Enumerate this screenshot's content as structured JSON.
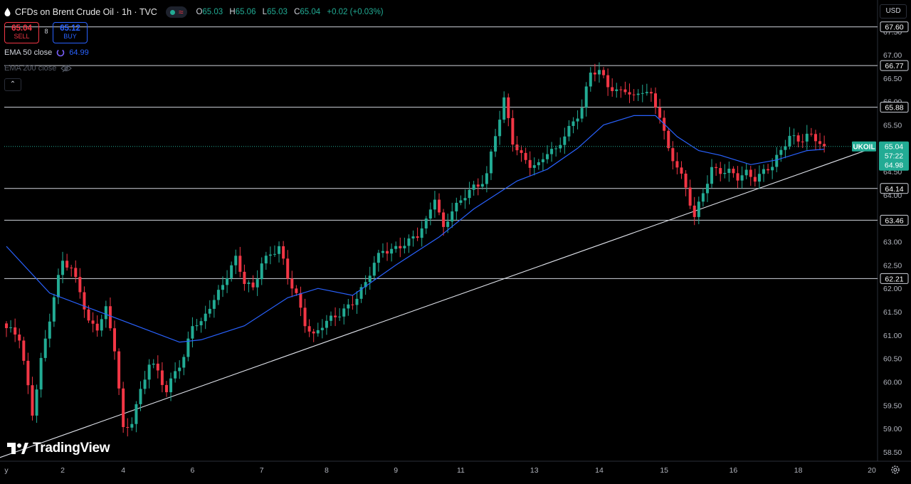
{
  "header": {
    "title": "CFDs on Brent Crude Oil · 1h · TVC",
    "ohlc": {
      "o": "65.03",
      "h": "65.06",
      "l": "65.03",
      "c": "65.04",
      "change": "+0.02 (+0.03%)"
    }
  },
  "trade": {
    "sell_price": "65.04",
    "sell_label": "SELL",
    "spread": "8",
    "buy_price": "65.12",
    "buy_label": "BUY"
  },
  "indicators": {
    "ema50_label": "EMA 50 close",
    "ema50_value": "64.99",
    "ema200_label": "EMA 200 close"
  },
  "currency": "USD",
  "logo": "TradingView",
  "collapse_glyph": "⌃",
  "colors": {
    "up": "#22ab94",
    "down": "#f23645",
    "ema": "#2962ff",
    "level_line": "#d1d4dc",
    "background": "#000000",
    "price_tag": "#22ab94"
  },
  "chart_data": {
    "type": "candlestick",
    "symbol": "UKOIL",
    "y_range": [
      58.3,
      67.9
    ],
    "y_ticks": [
      "58.50",
      "59.00",
      "59.50",
      "60.00",
      "60.50",
      "61.00",
      "61.50",
      "62.00",
      "62.50",
      "63.00",
      "63.50",
      "64.00",
      "64.50",
      "65.00",
      "65.50",
      "66.00",
      "66.50",
      "67.00",
      "67.50"
    ],
    "x_ticks": [
      {
        "i": 0,
        "label": "y"
      },
      {
        "i": 13,
        "label": "2"
      },
      {
        "i": 27,
        "label": "4"
      },
      {
        "i": 43,
        "label": "6"
      },
      {
        "i": 59,
        "label": "7"
      },
      {
        "i": 74,
        "label": "8"
      },
      {
        "i": 90,
        "label": "9"
      },
      {
        "i": 105,
        "label": "11"
      },
      {
        "i": 122,
        "label": "13"
      },
      {
        "i": 137,
        "label": "14"
      },
      {
        "i": 152,
        "label": "15"
      },
      {
        "i": 168,
        "label": "16"
      },
      {
        "i": 183,
        "label": "18"
      },
      {
        "i": 200,
        "label": "20"
      }
    ],
    "horizontal_levels": [
      "67.60",
      "66.77",
      "65.88",
      "64.14",
      "63.46",
      "62.21"
    ],
    "last_price": {
      "symbol": "UKOIL",
      "price": "65.04",
      "countdown": "57:22",
      "ema": "64.98"
    },
    "trendline": [
      {
        "i": -10,
        "price": 58.1
      },
      {
        "i": 200,
        "price": 65.0
      }
    ],
    "close_anchors": [
      [
        0,
        61.15
      ],
      [
        3,
        60.9
      ],
      [
        6,
        59.35
      ],
      [
        8,
        60.5
      ],
      [
        11,
        61.8
      ],
      [
        13,
        62.55
      ],
      [
        15,
        62.4
      ],
      [
        17,
        62.0
      ],
      [
        19,
        61.3
      ],
      [
        21,
        61.15
      ],
      [
        23,
        61.5
      ],
      [
        25,
        60.7
      ],
      [
        27,
        59.0
      ],
      [
        29,
        59.2
      ],
      [
        31,
        59.8
      ],
      [
        33,
        60.35
      ],
      [
        35,
        60.2
      ],
      [
        37,
        59.8
      ],
      [
        39,
        60.3
      ],
      [
        41,
        60.5
      ],
      [
        43,
        61.2
      ],
      [
        45,
        61.2
      ],
      [
        47,
        61.65
      ],
      [
        49,
        61.95
      ],
      [
        51,
        62.3
      ],
      [
        53,
        62.6
      ],
      [
        55,
        62.1
      ],
      [
        57,
        62.0
      ],
      [
        59,
        62.6
      ],
      [
        61,
        62.75
      ],
      [
        63,
        62.85
      ],
      [
        65,
        62.2
      ],
      [
        67,
        61.85
      ],
      [
        69,
        61.3
      ],
      [
        71,
        61.0
      ],
      [
        73,
        61.2
      ],
      [
        75,
        61.3
      ],
      [
        77,
        61.45
      ],
      [
        79,
        61.65
      ],
      [
        81,
        61.85
      ],
      [
        83,
        62.1
      ],
      [
        85,
        62.5
      ],
      [
        87,
        62.8
      ],
      [
        89,
        62.85
      ],
      [
        91,
        62.95
      ],
      [
        93,
        63.0
      ],
      [
        95,
        63.1
      ],
      [
        97,
        63.4
      ],
      [
        99,
        64.0
      ],
      [
        101,
        63.3
      ],
      [
        103,
        63.7
      ],
      [
        105,
        63.8
      ],
      [
        107,
        64.1
      ],
      [
        109,
        64.2
      ],
      [
        111,
        64.5
      ],
      [
        113,
        65.3
      ],
      [
        115,
        66.0
      ],
      [
        117,
        65.1
      ],
      [
        119,
        64.85
      ],
      [
        121,
        64.7
      ],
      [
        123,
        64.65
      ],
      [
        125,
        64.9
      ],
      [
        127,
        64.9
      ],
      [
        129,
        65.3
      ],
      [
        131,
        65.6
      ],
      [
        133,
        65.9
      ],
      [
        135,
        66.6
      ],
      [
        137,
        66.6
      ],
      [
        139,
        66.35
      ],
      [
        141,
        66.25
      ],
      [
        143,
        66.3
      ],
      [
        145,
        66.05
      ],
      [
        147,
        66.2
      ],
      [
        149,
        66.1
      ],
      [
        151,
        65.75
      ],
      [
        153,
        65.0
      ],
      [
        155,
        64.6
      ],
      [
        157,
        64.1
      ],
      [
        159,
        63.5
      ],
      [
        161,
        64.1
      ],
      [
        163,
        64.6
      ],
      [
        165,
        64.5
      ],
      [
        167,
        64.45
      ],
      [
        169,
        64.35
      ],
      [
        171,
        64.5
      ],
      [
        173,
        64.4
      ],
      [
        175,
        64.5
      ],
      [
        177,
        64.6
      ],
      [
        179,
        64.9
      ],
      [
        181,
        65.3
      ],
      [
        183,
        65.2
      ],
      [
        185,
        65.3
      ],
      [
        187,
        65.15
      ],
      [
        189,
        65.04
      ]
    ],
    "ema_anchors": [
      [
        0,
        62.9
      ],
      [
        10,
        61.9
      ],
      [
        20,
        61.55
      ],
      [
        30,
        61.2
      ],
      [
        40,
        60.85
      ],
      [
        45,
        60.9
      ],
      [
        55,
        61.2
      ],
      [
        65,
        61.8
      ],
      [
        72,
        62.0
      ],
      [
        80,
        61.85
      ],
      [
        90,
        62.5
      ],
      [
        100,
        63.1
      ],
      [
        108,
        63.7
      ],
      [
        118,
        64.3
      ],
      [
        125,
        64.55
      ],
      [
        132,
        65.0
      ],
      [
        138,
        65.5
      ],
      [
        145,
        65.7
      ],
      [
        150,
        65.7
      ],
      [
        155,
        65.25
      ],
      [
        160,
        64.95
      ],
      [
        165,
        64.85
      ],
      [
        172,
        64.65
      ],
      [
        178,
        64.75
      ],
      [
        185,
        64.95
      ],
      [
        189,
        64.98
      ]
    ]
  }
}
